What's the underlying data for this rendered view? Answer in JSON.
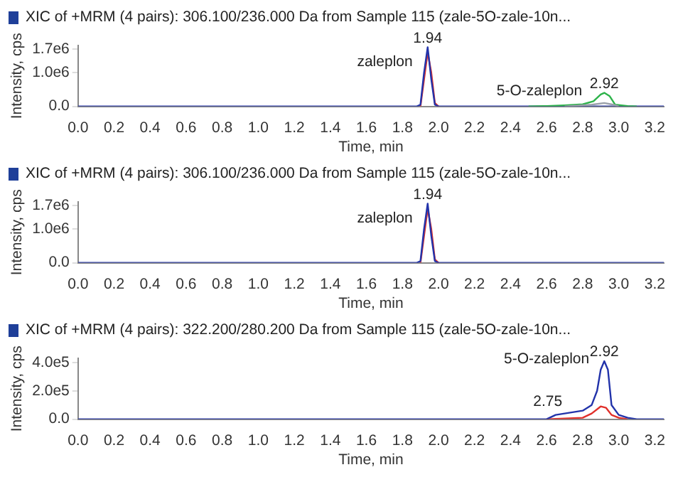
{
  "chart_data": [
    {
      "type": "line",
      "title": "XIC of +MRM (4 pairs): 306.100/236.000 Da from Sample 115 (zale-5O-zale-10n...",
      "xlabel": "Time, min",
      "ylabel": "Intensity, cps",
      "xlim": [
        0,
        3.25
      ],
      "ylim": [
        0,
        1800000
      ],
      "xticks": [
        {
          "value": 0,
          "label": "0.0"
        },
        {
          "value": 0.2,
          "label": "0.2"
        },
        {
          "value": 0.4,
          "label": "0.4"
        },
        {
          "value": 0.6,
          "label": "0.6"
        },
        {
          "value": 0.8,
          "label": "0.8"
        },
        {
          "value": 1,
          "label": "1.0"
        },
        {
          "value": 1.2,
          "label": "1.2"
        },
        {
          "value": 1.4,
          "label": "1.4"
        },
        {
          "value": 1.6,
          "label": "1.6"
        },
        {
          "value": 1.8,
          "label": "1.8"
        },
        {
          "value": 2,
          "label": "2.0"
        },
        {
          "value": 2.2,
          "label": "2.2"
        },
        {
          "value": 2.4,
          "label": "2.4"
        },
        {
          "value": 2.6,
          "label": "2.6"
        },
        {
          "value": 2.8,
          "label": "2.8"
        },
        {
          "value": 3,
          "label": "3.0"
        },
        {
          "value": 3.2,
          "label": "3.2"
        }
      ],
      "yticks": [
        {
          "value": 0,
          "label": "0.0"
        },
        {
          "value": 1000000,
          "label": "1.0e6"
        },
        {
          "value": 1700000,
          "label": "1.7e6"
        }
      ],
      "grid": false,
      "legend": false,
      "marker": "none",
      "line_style": "solid",
      "series": [
        {
          "color": "#9aa0a8",
          "x": [
            2.7,
            2.85,
            2.92,
            2.97,
            3.0
          ],
          "values": [
            0,
            50000,
            100000,
            50000,
            0
          ]
        },
        {
          "color": "#2db34a",
          "x": [
            2.5,
            2.6,
            2.7,
            2.8,
            2.86,
            2.9,
            2.92,
            2.95,
            2.98,
            3.05,
            3.1
          ],
          "values": [
            0,
            10000,
            30000,
            60000,
            150000,
            350000,
            400000,
            300000,
            50000,
            10000,
            0
          ]
        },
        {
          "color": "#2233aa",
          "x": [
            0,
            1.88,
            1.9,
            1.92,
            1.94,
            1.96,
            1.98,
            2.0,
            3.25
          ],
          "values": [
            0,
            0,
            50000,
            1000000,
            1750000,
            800000,
            50000,
            0,
            0
          ]
        },
        {
          "color": "#e0302a",
          "x": [
            1.9,
            1.92,
            1.94,
            1.96,
            1.98,
            2.0
          ],
          "values": [
            0,
            800000,
            1600000,
            1000000,
            100000,
            0
          ]
        }
      ],
      "annotations": [
        {
          "text": "1.94",
          "x": 1.94,
          "y": 1750000
        },
        {
          "text": "zaleplon",
          "x": 1.92,
          "y": 1000000
        },
        {
          "text": "5-O-zaleplon",
          "x": 2.86,
          "y": 150000
        },
        {
          "text": "2.92",
          "x": 2.92,
          "y": 400000
        }
      ]
    },
    {
      "type": "line",
      "title": "XIC of +MRM (4 pairs): 306.100/236.000 Da from Sample 115 (zale-5O-zale-10n...",
      "xlabel": "Time, min",
      "ylabel": "Intensity, cps",
      "xlim": [
        0,
        3.25
      ],
      "ylim": [
        0,
        1800000
      ],
      "xticks": [
        {
          "value": 0,
          "label": "0.0"
        },
        {
          "value": 0.2,
          "label": "0.2"
        },
        {
          "value": 0.4,
          "label": "0.4"
        },
        {
          "value": 0.6,
          "label": "0.6"
        },
        {
          "value": 0.8,
          "label": "0.8"
        },
        {
          "value": 1,
          "label": "1.0"
        },
        {
          "value": 1.2,
          "label": "1.2"
        },
        {
          "value": 1.4,
          "label": "1.4"
        },
        {
          "value": 1.6,
          "label": "1.6"
        },
        {
          "value": 1.8,
          "label": "1.8"
        },
        {
          "value": 2,
          "label": "2.0"
        },
        {
          "value": 2.2,
          "label": "2.2"
        },
        {
          "value": 2.4,
          "label": "2.4"
        },
        {
          "value": 2.6,
          "label": "2.6"
        },
        {
          "value": 2.8,
          "label": "2.8"
        },
        {
          "value": 3,
          "label": "3.0"
        },
        {
          "value": 3.2,
          "label": "3.2"
        }
      ],
      "yticks": [
        {
          "value": 0,
          "label": "0.0"
        },
        {
          "value": 1000000,
          "label": "1.0e6"
        },
        {
          "value": 1700000,
          "label": "1.7e6"
        }
      ],
      "grid": false,
      "legend": false,
      "marker": "none",
      "line_style": "solid",
      "series": [
        {
          "color": "#2233aa",
          "x": [
            0,
            1.88,
            1.9,
            1.92,
            1.94,
            1.96,
            1.98,
            2.0,
            3.25
          ],
          "values": [
            0,
            0,
            50000,
            1000000,
            1750000,
            800000,
            50000,
            0,
            0
          ]
        },
        {
          "color": "#e0302a",
          "x": [
            1.9,
            1.92,
            1.94,
            1.96,
            1.98,
            2.0
          ],
          "values": [
            0,
            800000,
            1600000,
            1000000,
            100000,
            0
          ]
        }
      ],
      "annotations": [
        {
          "text": "1.94",
          "x": 1.94,
          "y": 1750000
        },
        {
          "text": "zaleplon",
          "x": 1.92,
          "y": 1000000
        }
      ]
    },
    {
      "type": "line",
      "title": "XIC of +MRM (4 pairs): 322.200/280.200 Da from Sample 115 (zale-5O-zale-10n...",
      "xlabel": "Time, min",
      "ylabel": "Intensity, cps",
      "xlim": [
        0,
        3.25
      ],
      "ylim": [
        0,
        430000
      ],
      "xticks": [
        {
          "value": 0,
          "label": "0.0"
        },
        {
          "value": 0.2,
          "label": "0.2"
        },
        {
          "value": 0.4,
          "label": "0.4"
        },
        {
          "value": 0.6,
          "label": "0.6"
        },
        {
          "value": 0.8,
          "label": "0.8"
        },
        {
          "value": 1,
          "label": "1.0"
        },
        {
          "value": 1.2,
          "label": "1.2"
        },
        {
          "value": 1.4,
          "label": "1.4"
        },
        {
          "value": 1.6,
          "label": "1.6"
        },
        {
          "value": 1.8,
          "label": "1.8"
        },
        {
          "value": 2,
          "label": "2.0"
        },
        {
          "value": 2.2,
          "label": "2.2"
        },
        {
          "value": 2.4,
          "label": "2.4"
        },
        {
          "value": 2.6,
          "label": "2.6"
        },
        {
          "value": 2.8,
          "label": "2.8"
        },
        {
          "value": 3,
          "label": "3.0"
        },
        {
          "value": 3.2,
          "label": "3.2"
        }
      ],
      "yticks": [
        {
          "value": 0,
          "label": "0.0"
        },
        {
          "value": 200000,
          "label": "2.0e5"
        },
        {
          "value": 400000,
          "label": "4.0e5"
        }
      ],
      "grid": false,
      "legend": false,
      "marker": "none",
      "line_style": "solid",
      "series": [
        {
          "color": "#2233aa",
          "x": [
            0,
            2.6,
            2.65,
            2.7,
            2.75,
            2.8,
            2.85,
            2.88,
            2.9,
            2.92,
            2.94,
            2.96,
            3.0,
            3.05,
            3.1,
            3.25
          ],
          "values": [
            0,
            0,
            30000,
            40000,
            50000,
            60000,
            100000,
            200000,
            350000,
            410000,
            350000,
            100000,
            30000,
            10000,
            0,
            0
          ]
        },
        {
          "color": "#e0302a",
          "x": [
            2.6,
            2.8,
            2.85,
            2.9,
            2.93,
            2.96,
            3.0,
            3.05
          ],
          "values": [
            0,
            10000,
            40000,
            90000,
            80000,
            30000,
            10000,
            0
          ]
        }
      ],
      "annotations": [
        {
          "text": "2.92",
          "x": 2.92,
          "y": 410000
        },
        {
          "text": "5-O-zaleplon",
          "x": 2.9,
          "y": 350000
        },
        {
          "text": "2.75",
          "x": 2.75,
          "y": 50000
        }
      ]
    }
  ]
}
